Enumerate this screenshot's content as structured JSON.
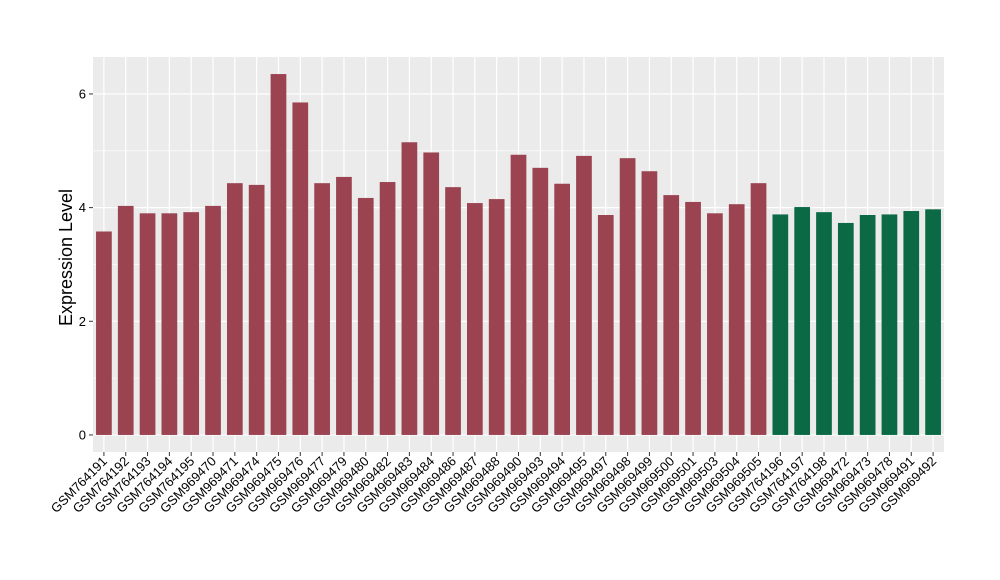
{
  "chart_data": {
    "type": "bar",
    "ylabel": "Expression Level",
    "xlabel": "",
    "ylim": [
      -0.3,
      6.65
    ],
    "yticks": [
      0,
      2,
      4,
      6
    ],
    "grid": true,
    "legend": "none",
    "colors": {
      "group1": "#9b4350",
      "group2": "#0b6a45",
      "panel": "#ebebeb",
      "grid": "#ffffff"
    },
    "categories": [
      "GSM764191",
      "GSM764192",
      "GSM764193",
      "GSM764194",
      "GSM764195",
      "GSM969470",
      "GSM969471",
      "GSM969474",
      "GSM969475",
      "GSM969476",
      "GSM969477",
      "GSM969479",
      "GSM969480",
      "GSM969482",
      "GSM969483",
      "GSM969484",
      "GSM969486",
      "GSM969487",
      "GSM969488",
      "GSM969490",
      "GSM969493",
      "GSM969494",
      "GSM969495",
      "GSM969497",
      "GSM969498",
      "GSM969499",
      "GSM969500",
      "GSM969501",
      "GSM969503",
      "GSM969504",
      "GSM969505",
      "GSM764196",
      "GSM764197",
      "GSM764198",
      "GSM969472",
      "GSM969473",
      "GSM969478",
      "GSM969491",
      "GSM969492"
    ],
    "values": [
      3.58,
      4.03,
      3.9,
      3.9,
      3.92,
      4.03,
      4.43,
      4.4,
      6.35,
      5.85,
      4.43,
      4.54,
      4.17,
      4.45,
      5.15,
      4.97,
      4.36,
      4.08,
      4.15,
      4.93,
      4.7,
      4.42,
      4.91,
      3.87,
      4.87,
      4.64,
      4.22,
      4.1,
      3.9,
      4.06,
      4.43,
      3.88,
      4.01,
      3.92,
      3.73,
      3.87,
      3.88,
      3.94,
      3.97
    ],
    "groups": [
      1,
      1,
      1,
      1,
      1,
      1,
      1,
      1,
      1,
      1,
      1,
      1,
      1,
      1,
      1,
      1,
      1,
      1,
      1,
      1,
      1,
      1,
      1,
      1,
      1,
      1,
      1,
      1,
      1,
      1,
      1,
      2,
      2,
      2,
      2,
      2,
      2,
      2,
      2
    ]
  }
}
